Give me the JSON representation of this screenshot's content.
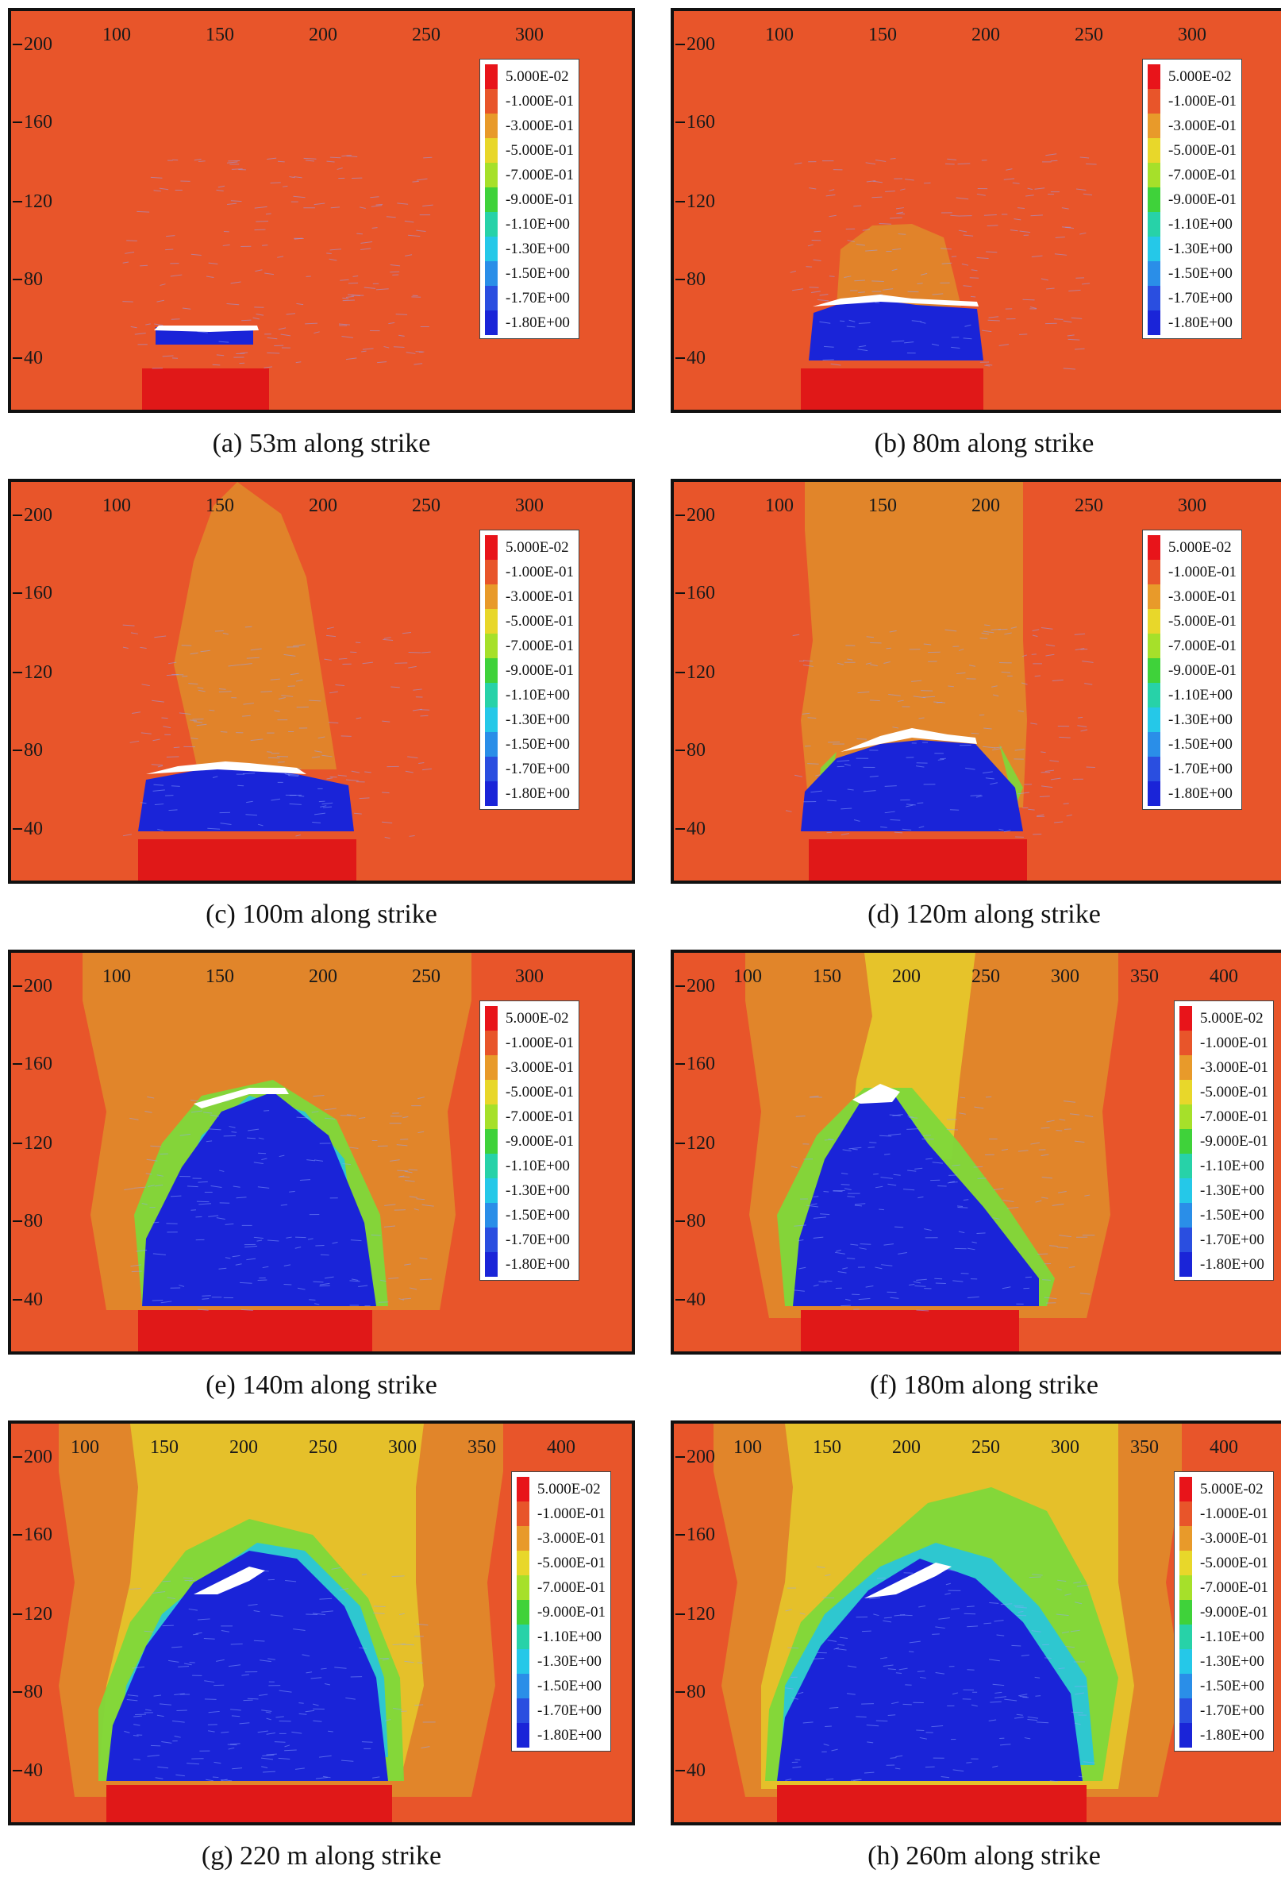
{
  "legend": {
    "levels": [
      {
        "label": "5.000E-02",
        "color": "#e8141a"
      },
      {
        "label": "-1.000E-01",
        "color": "#e8552a"
      },
      {
        "label": "-3.000E-01",
        "color": "#e89a2a"
      },
      {
        "label": "-5.000E-01",
        "color": "#e8d72a"
      },
      {
        "label": "-7.000E-01",
        "color": "#a6e02a"
      },
      {
        "label": "-9.000E-01",
        "color": "#3fd23a"
      },
      {
        "label": "-1.10E+00",
        "color": "#27d2a8"
      },
      {
        "label": "-1.30E+00",
        "color": "#25c8e8"
      },
      {
        "label": "-1.50E+00",
        "color": "#2a8ee8"
      },
      {
        "label": "-1.70E+00",
        "color": "#2a4ee0"
      },
      {
        "label": "-1.80E+00",
        "color": "#1a24d8"
      }
    ]
  },
  "colors": {
    "background": "#e8552a",
    "base": "#e01818",
    "goaf": "#1a24d8",
    "halo_orange": "#e0882a",
    "halo_yellow": "#e6c62a",
    "halo_green": "#7ed83a",
    "halo_cyan": "#29c6d8"
  },
  "panels": [
    {
      "caption": "(a) 53m along strike",
      "x_ticks": [
        "100",
        "150",
        "200",
        "250",
        "300"
      ],
      "y_ticks": [
        "200",
        "160",
        "120",
        "80",
        "40"
      ]
    },
    {
      "caption": "(b) 80m along strike",
      "x_ticks": [
        "100",
        "150",
        "200",
        "250",
        "300"
      ],
      "y_ticks": [
        "200",
        "160",
        "120",
        "80",
        "40"
      ]
    },
    {
      "caption": "(c) 100m along strike",
      "x_ticks": [
        "100",
        "150",
        "200",
        "250",
        "300"
      ],
      "y_ticks": [
        "200",
        "160",
        "120",
        "80",
        "40"
      ]
    },
    {
      "caption": "(d) 120m along strike",
      "x_ticks": [
        "100",
        "150",
        "200",
        "250",
        "300"
      ],
      "y_ticks": [
        "200",
        "160",
        "120",
        "80",
        "40"
      ]
    },
    {
      "caption": "(e) 140m along strike",
      "x_ticks": [
        "100",
        "150",
        "200",
        "250",
        "300"
      ],
      "y_ticks": [
        "200",
        "160",
        "120",
        "80",
        "40"
      ]
    },
    {
      "caption": "(f) 180m along strike",
      "x_ticks": [
        "100",
        "150",
        "200",
        "250",
        "300",
        "350",
        "400"
      ],
      "y_ticks": [
        "200",
        "160",
        "120",
        "80",
        "40"
      ]
    },
    {
      "caption": "(g) 220 m along strike",
      "x_ticks": [
        "100",
        "150",
        "200",
        "250",
        "300",
        "350",
        "400"
      ],
      "y_ticks": [
        "200",
        "160",
        "120",
        "80",
        "40"
      ]
    },
    {
      "caption": "(h) 260m along strike",
      "x_ticks": [
        "100",
        "150",
        "200",
        "250",
        "300",
        "350",
        "400"
      ],
      "y_ticks": [
        "200",
        "160",
        "120",
        "80",
        "40"
      ]
    }
  ]
}
